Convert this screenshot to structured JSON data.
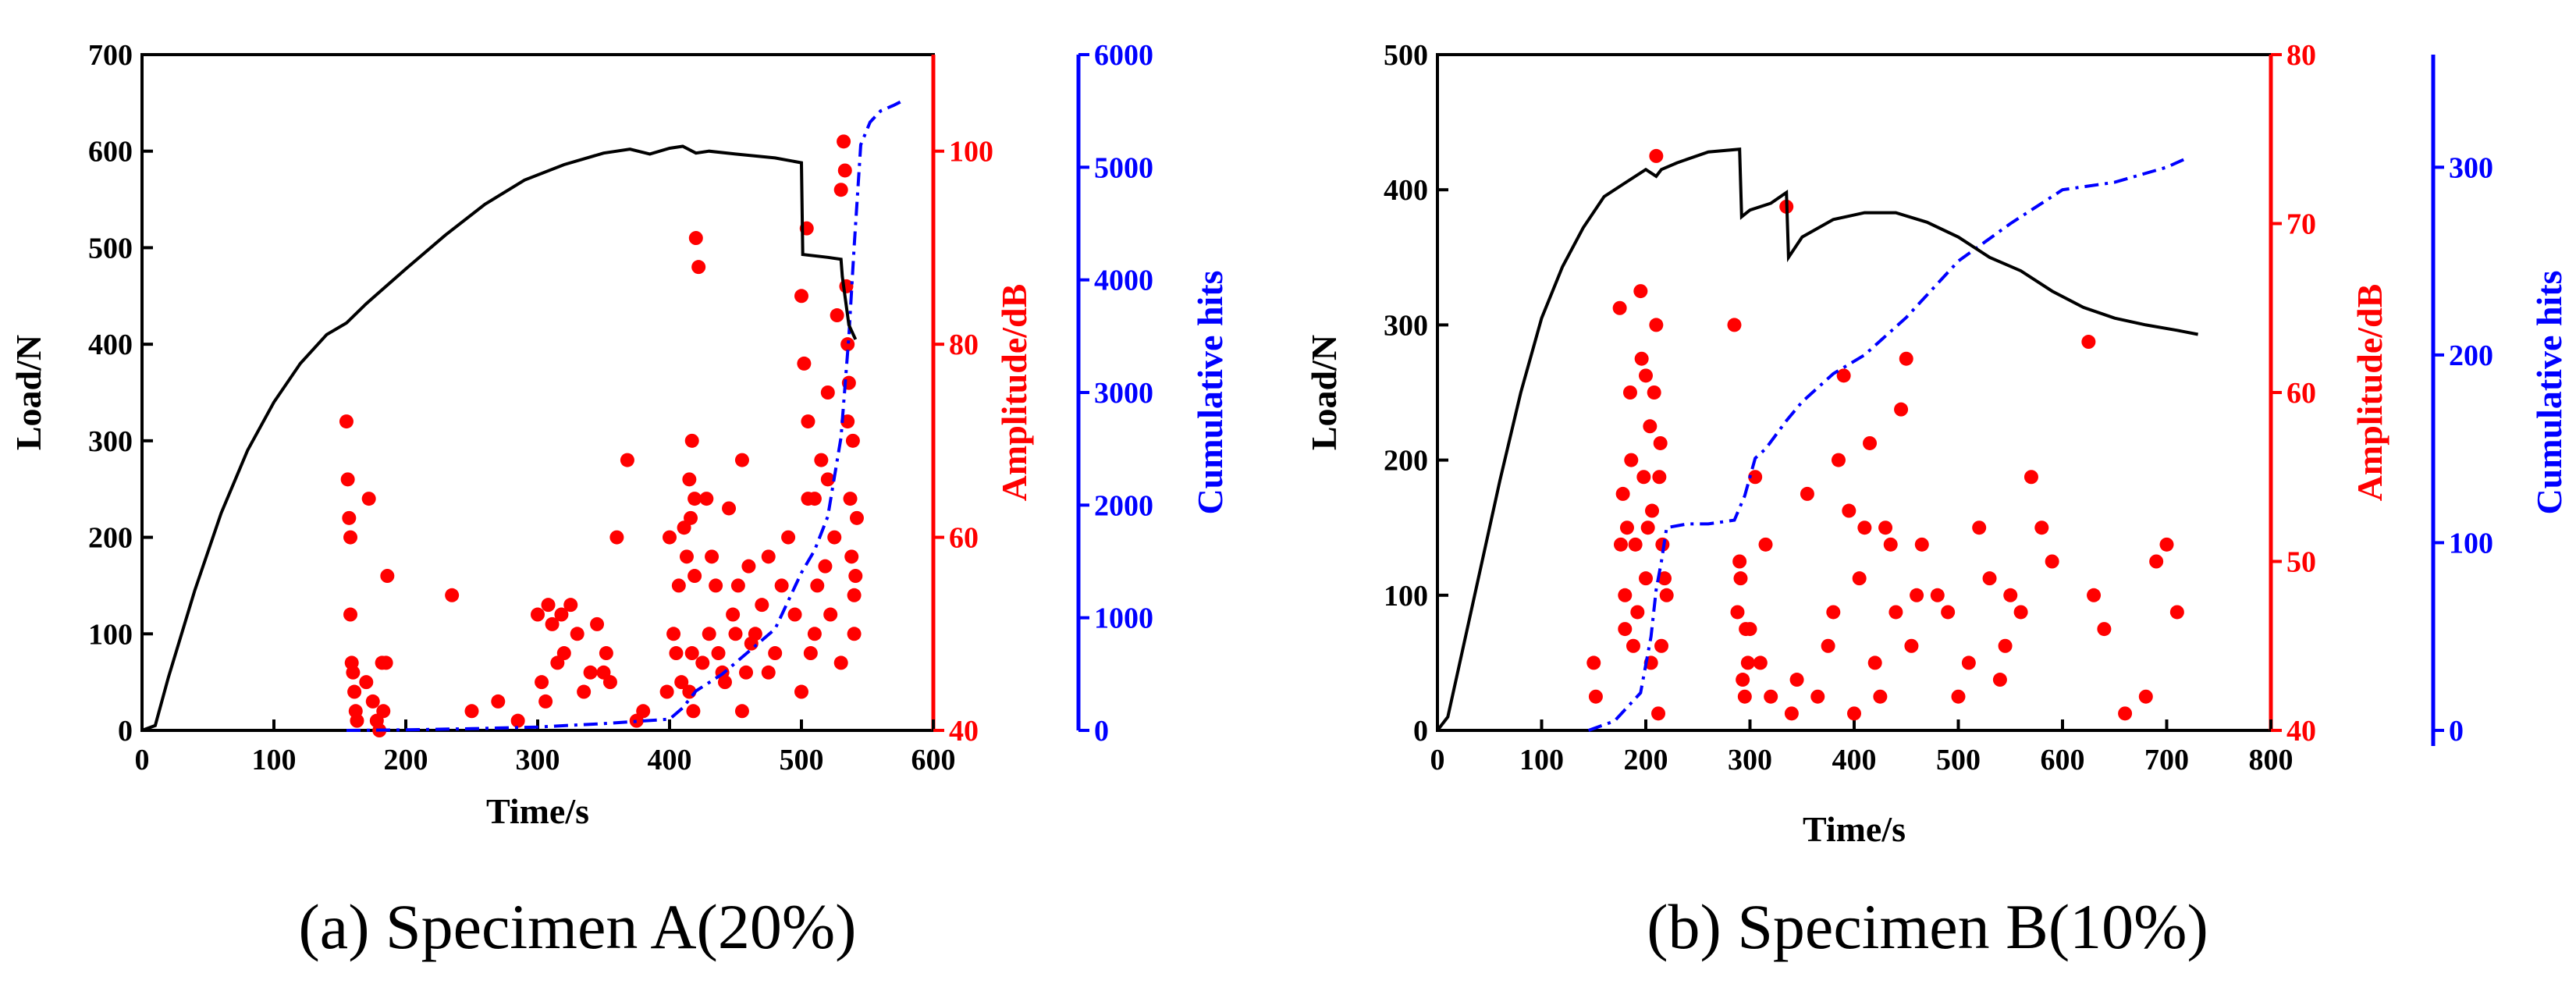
{
  "colors": {
    "load": "#000000",
    "amplitude": "#ff0000",
    "hits": "#0000ff",
    "frame": "#000000"
  },
  "chart_data": [
    {
      "type": "line+scatter",
      "caption": "(a) Specimen A(20%)",
      "xlabel": "Time/s",
      "ylabel_left": "Load/N",
      "ylabel_right1": "Amplitude/dB",
      "ylabel_right2": "Cumulative hits",
      "xlim": [
        0,
        600
      ],
      "ylim_load": [
        0,
        700
      ],
      "ylim_amp": [
        40,
        110
      ],
      "ylim_hits": [
        0,
        6000
      ],
      "xticks": [
        0,
        100,
        200,
        300,
        400,
        500,
        600
      ],
      "yticks_load": [
        0,
        100,
        200,
        300,
        400,
        500,
        600,
        700
      ],
      "yticks_amp": [
        40,
        60,
        80,
        100
      ],
      "yticks_hits": [
        0,
        1000,
        2000,
        3000,
        4000,
        5000,
        6000
      ],
      "series": [
        {
          "name": "Load",
          "axis": "load",
          "style": "solid",
          "x": [
            0,
            10,
            20,
            40,
            60,
            80,
            100,
            120,
            140,
            155,
            170,
            200,
            230,
            260,
            290,
            320,
            350,
            370,
            385,
            400,
            410,
            420,
            430,
            450,
            480,
            500,
            501,
            520,
            530,
            531,
            536,
            541
          ],
          "y": [
            0,
            5,
            55,
            145,
            225,
            290,
            340,
            380,
            410,
            422,
            442,
            478,
            513,
            545,
            570,
            586,
            598,
            602,
            597,
            603,
            605,
            598,
            600,
            597,
            593,
            588,
            493,
            490,
            488,
            470,
            420,
            405
          ]
        },
        {
          "name": "Cumulative hits",
          "axis": "hits",
          "style": "dashdot",
          "x": [
            155,
            200,
            250,
            300,
            350,
            400,
            410,
            420,
            440,
            460,
            480,
            500,
            510,
            520,
            530,
            536,
            540,
            545,
            552,
            560,
            570,
            575
          ],
          "y": [
            0,
            5,
            15,
            30,
            60,
            100,
            200,
            350,
            500,
            700,
            900,
            1400,
            1600,
            1900,
            2600,
            3500,
            4300,
            5200,
            5400,
            5500,
            5550,
            5580
          ]
        },
        {
          "name": "Amplitude",
          "axis": "amp",
          "style": "scatter",
          "x": [
            155,
            156,
            157,
            158,
            158,
            159,
            160,
            161,
            162,
            163,
            170,
            172,
            175,
            178,
            180,
            182,
            183,
            185,
            186,
            235,
            250,
            270,
            285,
            300,
            303,
            306,
            308,
            311,
            315,
            318,
            320,
            325,
            330,
            335,
            340,
            345,
            350,
            352,
            355,
            360,
            368,
            375,
            380,
            398,
            400,
            403,
            405,
            407,
            409,
            411,
            413,
            415,
            416,
            417,
            418,
            419,
            420,
            422,
            425,
            428,
            430,
            432,
            435,
            437,
            440,
            442,
            445,
            448,
            450,
            452,
            455,
            458,
            460,
            462,
            465,
            470,
            475,
            480,
            485,
            490,
            495,
            500,
            502,
            504,
            505,
            507,
            510,
            512,
            515,
            518,
            520,
            522,
            525,
            527,
            530,
            532,
            533,
            534,
            535,
            536,
            537,
            538,
            539,
            540,
            541,
            542,
            415,
            417,
            419,
            455,
            475,
            500,
            505,
            510,
            520,
            530,
            535,
            540
          ],
          "y": [
            72,
            66,
            62,
            60,
            52,
            47,
            46,
            44,
            42,
            41,
            45,
            64,
            43,
            41,
            40,
            47,
            42,
            47,
            56,
            54,
            42,
            43,
            41,
            52,
            45,
            43,
            53,
            51,
            47,
            52,
            48,
            53,
            50,
            44,
            46,
            51,
            46,
            48,
            45,
            60,
            68,
            41,
            42,
            44,
            60,
            50,
            48,
            55,
            45,
            61,
            58,
            66,
            62,
            70,
            42,
            56,
            91,
            88,
            47,
            64,
            50,
            58,
            55,
            48,
            46,
            45,
            63,
            52,
            50,
            55,
            68,
            46,
            57,
            49,
            50,
            53,
            46,
            48,
            55,
            60,
            52,
            85,
            78,
            92,
            72,
            48,
            64,
            55,
            68,
            57,
            75,
            52,
            60,
            83,
            96,
            101,
            98,
            86,
            80,
            76,
            64,
            58,
            70,
            50,
            56,
            62,
            44,
            48,
            64,
            42,
            58,
            44,
            64,
            50,
            66,
            47,
            72,
            54
          ]
        }
      ]
    },
    {
      "type": "line+scatter",
      "caption": "(b) Specimen B(10%)",
      "xlabel": "Time/s",
      "ylabel_left": "Load/N",
      "ylabel_right1": "Amplitude/dB",
      "ylabel_right2": "Cumulative hits",
      "xlim": [
        0,
        800
      ],
      "ylim_load": [
        0,
        500
      ],
      "ylim_amp": [
        40,
        80
      ],
      "ylim_hits": [
        0,
        360
      ],
      "xticks": [
        0,
        100,
        200,
        300,
        400,
        500,
        600,
        700,
        800
      ],
      "yticks_load": [
        0,
        100,
        200,
        300,
        400,
        500
      ],
      "yticks_amp": [
        40,
        50,
        60,
        70,
        80
      ],
      "yticks_hits": [
        0,
        100,
        200,
        300
      ],
      "series": [
        {
          "name": "Load",
          "axis": "load",
          "style": "solid",
          "x": [
            0,
            10,
            20,
            40,
            60,
            80,
            100,
            120,
            140,
            160,
            180,
            200,
            210,
            215,
            230,
            260,
            290,
            292,
            300,
            320,
            335,
            337,
            350,
            380,
            410,
            440,
            470,
            500,
            530,
            560,
            590,
            620,
            650,
            680,
            710,
            730
          ],
          "y": [
            0,
            10,
            45,
            115,
            185,
            250,
            305,
            343,
            372,
            395,
            405,
            415,
            410,
            415,
            420,
            428,
            430,
            380,
            385,
            390,
            398,
            350,
            365,
            378,
            383,
            383,
            376,
            365,
            350,
            340,
            325,
            313,
            305,
            300,
            296,
            293
          ]
        },
        {
          "name": "Cumulative hits",
          "axis": "hits",
          "style": "dashdot",
          "x": [
            145,
            170,
            195,
            205,
            210,
            215,
            220,
            240,
            260,
            285,
            295,
            305,
            315,
            335,
            350,
            380,
            410,
            450,
            500,
            550,
            600,
            650,
            700,
            720
          ],
          "y": [
            0,
            5,
            20,
            50,
            75,
            90,
            108,
            110,
            110,
            112,
            125,
            145,
            150,
            165,
            175,
            190,
            200,
            220,
            250,
            270,
            288,
            292,
            300,
            305
          ]
        },
        {
          "name": "Amplitude",
          "axis": "amp",
          "style": "scatter",
          "x": [
            150,
            152,
            175,
            176,
            178,
            180,
            180,
            182,
            185,
            186,
            188,
            190,
            192,
            195,
            196,
            198,
            200,
            200,
            202,
            204,
            205,
            206,
            208,
            210,
            210,
            212,
            213,
            214,
            215,
            216,
            218,
            220,
            285,
            288,
            290,
            291,
            293,
            295,
            296,
            298,
            300,
            305,
            310,
            315,
            320,
            335,
            340,
            345,
            355,
            365,
            375,
            380,
            385,
            390,
            395,
            400,
            405,
            410,
            415,
            420,
            425,
            430,
            435,
            440,
            445,
            450,
            455,
            460,
            465,
            480,
            490,
            500,
            510,
            520,
            530,
            540,
            545,
            550,
            560,
            570,
            580,
            590,
            625,
            630,
            640,
            660,
            680,
            690,
            700,
            710
          ],
          "y": [
            44,
            42,
            65,
            51,
            54,
            48,
            46,
            52,
            60,
            56,
            45,
            51,
            47,
            66,
            62,
            55,
            61,
            49,
            52,
            58,
            44,
            53,
            60,
            74,
            64,
            41,
            55,
            57,
            45,
            51,
            49,
            48,
            64,
            47,
            50,
            49,
            43,
            42,
            46,
            44,
            46,
            55,
            44,
            51,
            42,
            71,
            41,
            43,
            54,
            42,
            45,
            47,
            56,
            61,
            53,
            41,
            49,
            52,
            57,
            44,
            42,
            52,
            51,
            47,
            59,
            62,
            45,
            48,
            51,
            48,
            47,
            42,
            44,
            52,
            49,
            43,
            45,
            48,
            47,
            55,
            52,
            50,
            63,
            48,
            46,
            41,
            42,
            50,
            51,
            47
          ]
        }
      ]
    }
  ]
}
